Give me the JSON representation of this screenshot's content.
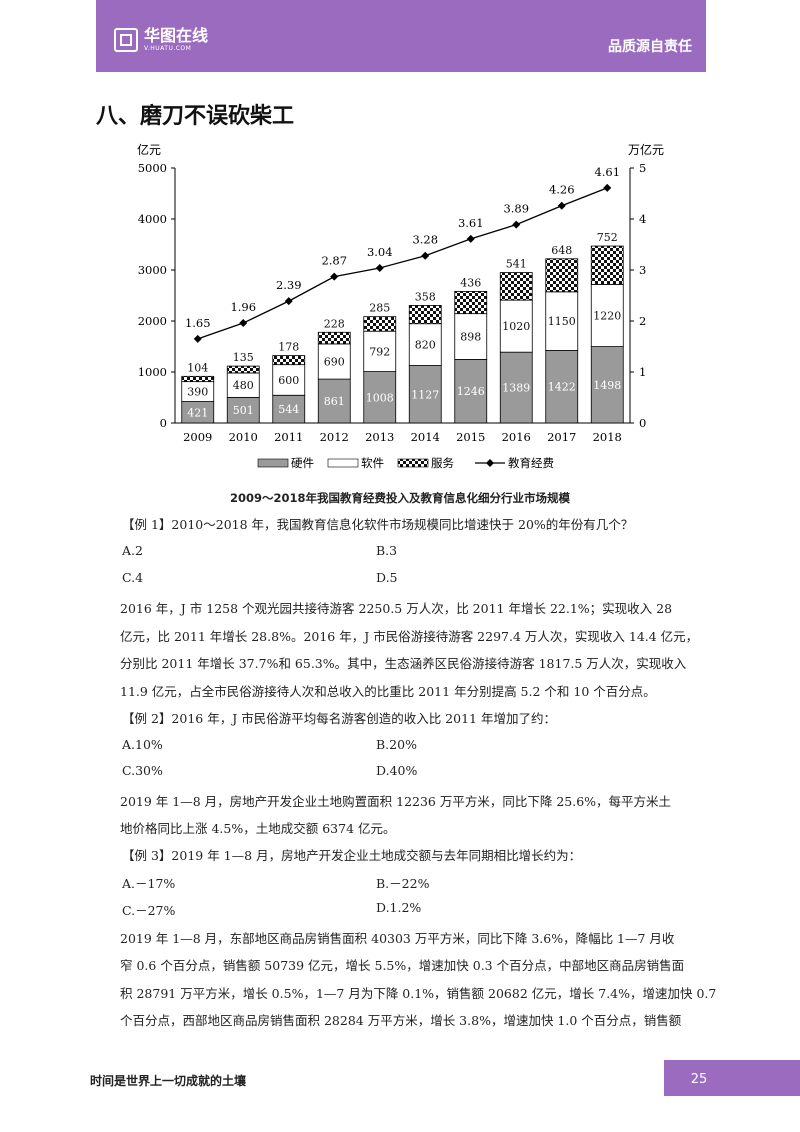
{
  "header": {
    "logo_text": "华图在线",
    "logo_sub": "V.HUATU.COM",
    "slogan": "品质源自责任"
  },
  "section_title": "八、磨刀不误砍柴工",
  "chart_data": {
    "type": "bar",
    "title": "2009～2018年我国教育经费投入及教育信息化细分行业市场规模",
    "categories": [
      "2009",
      "2010",
      "2011",
      "2012",
      "2013",
      "2014",
      "2015",
      "2016",
      "2017",
      "2018"
    ],
    "series": [
      {
        "name": "硬件",
        "values": [
          421,
          501,
          544,
          861,
          1008,
          1127,
          1246,
          1389,
          1422,
          1498
        ],
        "color": "#999999"
      },
      {
        "name": "软件",
        "values": [
          390,
          480,
          600,
          690,
          792,
          820,
          898,
          1020,
          1150,
          1220
        ],
        "color": "#ffffff"
      },
      {
        "name": "服务",
        "values": [
          104,
          135,
          178,
          228,
          285,
          358,
          436,
          541,
          648,
          752
        ],
        "color": "checker"
      },
      {
        "name": "教育经费",
        "values": [
          1.65,
          1.96,
          2.39,
          2.87,
          3.04,
          3.28,
          3.61,
          3.89,
          4.26,
          4.61
        ],
        "color": "#000000",
        "axis": "right"
      }
    ],
    "ylabel_left": "亿元",
    "ylabel_right": "万亿元",
    "ylim_left": [
      0,
      5000
    ],
    "ylim_right": [
      0,
      5
    ],
    "yticks_left": [
      "0",
      "1000",
      "2000",
      "3000",
      "4000",
      "5000"
    ],
    "yticks_right": [
      "0",
      "1",
      "2",
      "3",
      "4",
      "5"
    ],
    "legend_position": "bottom"
  },
  "content": {
    "q1": "【例 1】2010～2018 年，我国教育信息化软件市场规模同比增速快于 20%的年份有几个？",
    "q1_opts": [
      "A.2",
      "B.3",
      "C.4",
      "D.5"
    ],
    "para1": [
      "2016 年，J 市 1258 个观光园共接待游客 2250.5 万人次，比 2011 年增长 22.1%；实现收入 28",
      "亿元，比 2011 年增长 28.8%。2016 年，J 市民俗游接待游客 2297.4 万人次，实现收入 14.4 亿元，",
      "分别比 2011 年增长 37.7%和 65.3%。其中，生态涵养区民俗游接待游客 1817.5 万人次，实现收入",
      "11.9 亿元，占全市民俗游接待人次和总收入的比重比 2011 年分别提高 5.2 个和 10 个百分点。"
    ],
    "q2": "【例 2】2016 年，J 市民俗游平均每名游客创造的收入比 2011 年增加了约：",
    "q2_opts": [
      "A.10%",
      "B.20%",
      "C.30%",
      "D.40%"
    ],
    "para2": [
      "2019 年 1—8 月，房地产开发企业土地购置面积 12236 万平方米，同比下降 25.6%，每平方米土",
      "地价格同比上涨 4.5%，土地成交额 6374 亿元。"
    ],
    "q3": "【例 3】2019 年 1—8 月，房地产开发企业土地成交额与去年同期相比增长约为：",
    "q3_opts": [
      "A.－17%",
      "B.－22%",
      "C.－27%",
      "D.1.2%"
    ],
    "para3": [
      "2019 年 1—8 月，东部地区商品房销售面积 40303 万平方米，同比下降 3.6%，降幅比 1—7 月收",
      "窄 0.6 个百分点，销售额 50739 亿元，增长 5.5%，增速加快 0.3 个百分点，中部地区商品房销售面",
      "积 28791 万平方米，增长 0.5%，1—7 月为下降 0.1%，销售额 20682 亿元，增长 7.4%，增速加快 0.7",
      "个百分点，西部地区商品房销售面积 28284 万平方米，增长 3.8%，增速加快 1.0 个百分点，销售额"
    ]
  },
  "footer": {
    "motto": "时间是世界上一切成就的土壤",
    "page": "25"
  }
}
